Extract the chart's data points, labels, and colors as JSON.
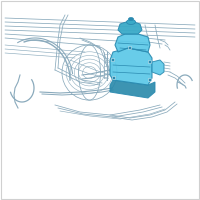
{
  "bg_color": "#ffffff",
  "border_color": "#d0d0d0",
  "line_color": "#8aaabc",
  "line_color2": "#9ab8c8",
  "highlight_fill": "#5bc8e8",
  "highlight_dark": "#2a8ab0",
  "highlight_mid": "#3aaac8",
  "shadow_color": "#2888aa",
  "fig_bg": "#f8f8f8"
}
